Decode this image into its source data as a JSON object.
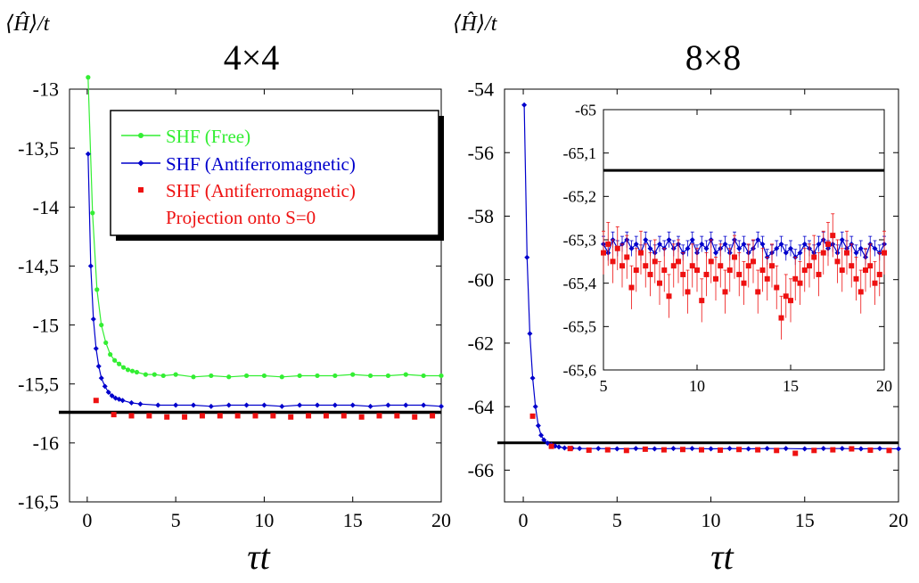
{
  "figure": {
    "ylabel_left": "⟨Ĥ⟩/t",
    "ylabel_right": "⟨Ĥ⟩/t",
    "xlabel_left": "τt",
    "xlabel_right": "τt",
    "title_left": "4×4",
    "title_right": "8×8"
  },
  "colors": {
    "free": "#33ee33",
    "af": "#0000cc",
    "proj": "#ee1111",
    "ref": "#000000"
  },
  "legend": {
    "free": "SHF (Free)",
    "af": "SHF (Antiferromagnetic)",
    "proj_line1": "SHF (Antiferromagnetic)",
    "proj_line2": "Projection onto S=0"
  },
  "chart_data": [
    {
      "type": "line",
      "title": "4×4",
      "xlabel": "τt",
      "ylabel": "⟨Ĥ⟩/t",
      "xlim": [
        -1,
        20
      ],
      "ylim": [
        -16.5,
        -13
      ],
      "xticks": [
        0,
        5,
        10,
        15,
        20
      ],
      "xtick_labels": [
        "0",
        "5",
        "10",
        "15",
        "20"
      ],
      "yticks": [
        -13,
        -13.5,
        -14,
        -14.5,
        -15,
        -15.5,
        -16,
        -16.5
      ],
      "ytick_labels": [
        "-13",
        "-13,5",
        "-14",
        "-14,5",
        "-15",
        "-15,5",
        "-16",
        "-16,5"
      ],
      "legend_position": "top-right",
      "reference_line": -15.74,
      "series": [
        {
          "name": "SHF (Free)",
          "marker": "circle",
          "x": [
            0.05,
            0.3,
            0.55,
            0.8,
            1.05,
            1.3,
            1.55,
            1.8,
            2.05,
            2.3,
            2.55,
            2.8,
            3.3,
            3.8,
            4.3,
            5.0,
            6,
            7,
            8,
            9,
            10,
            11,
            12,
            13,
            14,
            15,
            16,
            17,
            18,
            19,
            20
          ],
          "y": [
            -12.9,
            -14.05,
            -14.7,
            -15.0,
            -15.15,
            -15.25,
            -15.3,
            -15.33,
            -15.36,
            -15.38,
            -15.39,
            -15.4,
            -15.42,
            -15.42,
            -15.43,
            -15.42,
            -15.44,
            -15.43,
            -15.44,
            -15.43,
            -15.43,
            -15.44,
            -15.43,
            -15.43,
            -15.43,
            -15.42,
            -15.43,
            -15.43,
            -15.42,
            -15.43,
            -15.43
          ]
        },
        {
          "name": "SHF (Antiferromagnetic)",
          "marker": "diamond",
          "x": [
            0.05,
            0.2,
            0.35,
            0.5,
            0.65,
            0.8,
            1.0,
            1.2,
            1.4,
            1.6,
            1.8,
            2.0,
            2.5,
            3,
            4,
            5,
            6,
            7,
            8,
            9,
            10,
            11,
            12,
            13,
            14,
            15,
            16,
            17,
            18,
            19,
            20
          ],
          "y": [
            -13.55,
            -14.5,
            -14.95,
            -15.2,
            -15.35,
            -15.45,
            -15.52,
            -15.57,
            -15.6,
            -15.62,
            -15.63,
            -15.64,
            -15.66,
            -15.67,
            -15.68,
            -15.68,
            -15.68,
            -15.69,
            -15.68,
            -15.68,
            -15.68,
            -15.69,
            -15.68,
            -15.68,
            -15.68,
            -15.68,
            -15.69,
            -15.68,
            -15.68,
            -15.68,
            -15.69
          ]
        },
        {
          "name": "SHF (Antiferromagnetic) Projection onto S=0",
          "marker": "square",
          "x": [
            0.5,
            1.5,
            2.5,
            3.5,
            4.5,
            5.5,
            6.5,
            7.5,
            8.5,
            9.5,
            10.5,
            11.5,
            12.5,
            13.5,
            14.5,
            15.5,
            16.5,
            17.5,
            18.5,
            19.5
          ],
          "y": [
            -15.64,
            -15.76,
            -15.77,
            -15.77,
            -15.78,
            -15.78,
            -15.77,
            -15.77,
            -15.77,
            -15.77,
            -15.77,
            -15.78,
            -15.77,
            -15.77,
            -15.77,
            -15.78,
            -15.77,
            -15.77,
            -15.78,
            -15.77
          ]
        }
      ]
    },
    {
      "type": "line",
      "title": "8×8",
      "xlabel": "τt",
      "ylabel": "⟨Ĥ⟩/t",
      "xlim": [
        -1,
        20
      ],
      "ylim": [
        -67,
        -54
      ],
      "xticks": [
        0,
        5,
        10,
        15,
        20
      ],
      "xtick_labels": [
        "0",
        "5",
        "10",
        "15",
        "20"
      ],
      "yticks": [
        -54,
        -56,
        -58,
        -60,
        -62,
        -64,
        -66
      ],
      "ytick_labels": [
        "-54",
        "-56",
        "-58",
        "-60",
        "-62",
        "-64",
        "-66"
      ],
      "reference_line": -65.14,
      "series": [
        {
          "name": "SHF (Antiferromagnetic)",
          "marker": "diamond",
          "x": [
            0.05,
            0.2,
            0.35,
            0.5,
            0.65,
            0.8,
            0.95,
            1.1,
            1.3,
            1.5,
            1.7,
            1.9,
            2.2,
            2.6,
            3,
            4,
            5,
            6,
            7,
            8,
            9,
            10,
            11,
            12,
            13,
            14,
            15,
            16,
            17,
            18,
            19,
            20
          ],
          "y": [
            -54.5,
            -59.3,
            -61.7,
            -63.1,
            -64.0,
            -64.6,
            -64.9,
            -65.05,
            -65.15,
            -65.2,
            -65.24,
            -65.27,
            -65.3,
            -65.31,
            -65.32,
            -65.32,
            -65.33,
            -65.32,
            -65.33,
            -65.32,
            -65.32,
            -65.33,
            -65.32,
            -65.33,
            -65.32,
            -65.32,
            -65.33,
            -65.32,
            -65.32,
            -65.33,
            -65.32,
            -65.33
          ]
        },
        {
          "name": "SHF (Antiferromagnetic) Projection onto S=0",
          "marker": "square",
          "x": [
            0.5,
            1.5,
            2.5,
            3.5,
            4.5,
            5.5,
            6.5,
            7.5,
            8.5,
            9.5,
            10.5,
            11.5,
            12.5,
            13.5,
            14.5,
            15.5,
            16.5,
            17.5,
            18.5,
            19.5
          ],
          "y": [
            -64.3,
            -65.25,
            -65.32,
            -65.37,
            -65.36,
            -65.38,
            -65.34,
            -65.36,
            -65.35,
            -65.36,
            -65.37,
            -65.35,
            -65.36,
            -65.38,
            -65.47,
            -65.38,
            -65.36,
            -65.33,
            -65.37,
            -65.38
          ]
        }
      ]
    },
    {
      "type": "line",
      "title": "",
      "xlim": [
        5,
        20
      ],
      "ylim": [
        -65.6,
        -65
      ],
      "xticks": [
        5,
        10,
        15,
        20
      ],
      "xtick_labels": [
        "5",
        "10",
        "15",
        "20"
      ],
      "yticks": [
        -65,
        -65.1,
        -65.2,
        -65.3,
        -65.4,
        -65.5,
        -65.6
      ],
      "ytick_labels": [
        "-65",
        "-65,1",
        "-65,2",
        "-65,3",
        "-65,4",
        "-65,5",
        "-65,6"
      ],
      "reference_line": -65.14,
      "series": [
        {
          "name": "SHF (Antiferromagnetic)",
          "marker": "diamond",
          "error": 0.018,
          "x": [
            5.0,
            5.25,
            5.5,
            5.75,
            6.0,
            6.25,
            6.5,
            6.75,
            7.0,
            7.25,
            7.5,
            7.75,
            8.0,
            8.25,
            8.5,
            8.75,
            9.0,
            9.25,
            9.5,
            9.75,
            10.0,
            10.25,
            10.5,
            10.75,
            11.0,
            11.25,
            11.5,
            11.75,
            12.0,
            12.25,
            12.5,
            12.75,
            13.0,
            13.25,
            13.5,
            13.75,
            14.0,
            14.25,
            14.5,
            14.75,
            15.0,
            15.25,
            15.5,
            15.75,
            16.0,
            16.25,
            16.5,
            16.75,
            17.0,
            17.25,
            17.5,
            17.75,
            18.0,
            18.25,
            18.5,
            18.75,
            19.0,
            19.25,
            19.5,
            19.75,
            20.0
          ],
          "y": [
            -65.31,
            -65.33,
            -65.3,
            -65.32,
            -65.31,
            -65.3,
            -65.32,
            -65.31,
            -65.33,
            -65.3,
            -65.32,
            -65.33,
            -65.31,
            -65.32,
            -65.3,
            -65.32,
            -65.31,
            -65.33,
            -65.32,
            -65.3,
            -65.33,
            -65.31,
            -65.32,
            -65.3,
            -65.33,
            -65.32,
            -65.31,
            -65.33,
            -65.3,
            -65.32,
            -65.31,
            -65.33,
            -65.32,
            -65.3,
            -65.31,
            -65.34,
            -65.33,
            -65.32,
            -65.31,
            -65.33,
            -65.32,
            -65.34,
            -65.33,
            -65.31,
            -65.32,
            -65.33,
            -65.31,
            -65.3,
            -65.32,
            -65.31,
            -65.33,
            -65.3,
            -65.32,
            -65.31,
            -65.33,
            -65.32,
            -65.34,
            -65.31,
            -65.32,
            -65.33,
            -65.31
          ]
        },
        {
          "name": "SHF (Antiferromagnetic) Projection onto S=0",
          "marker": "square",
          "error": 0.05,
          "x": [
            5.0,
            5.25,
            5.5,
            5.75,
            6.0,
            6.25,
            6.5,
            6.75,
            7.0,
            7.25,
            7.5,
            7.75,
            8.0,
            8.25,
            8.5,
            8.75,
            9.0,
            9.25,
            9.5,
            9.75,
            10.0,
            10.25,
            10.5,
            10.75,
            11.0,
            11.25,
            11.5,
            11.75,
            12.0,
            12.25,
            12.5,
            12.75,
            13.0,
            13.25,
            13.5,
            13.75,
            14.0,
            14.25,
            14.5,
            14.75,
            15.0,
            15.25,
            15.5,
            15.75,
            16.0,
            16.25,
            16.5,
            16.75,
            17.0,
            17.25,
            17.5,
            17.75,
            18.0,
            18.25,
            18.5,
            18.75,
            19.0,
            19.25,
            19.5,
            19.75,
            20.0
          ],
          "y": [
            -65.33,
            -65.31,
            -65.35,
            -65.32,
            -65.36,
            -65.34,
            -65.41,
            -65.37,
            -65.33,
            -65.36,
            -65.38,
            -65.35,
            -65.4,
            -65.37,
            -65.43,
            -65.36,
            -65.35,
            -65.38,
            -65.42,
            -65.36,
            -65.37,
            -65.44,
            -65.38,
            -65.35,
            -65.39,
            -65.36,
            -65.42,
            -65.37,
            -65.34,
            -65.38,
            -65.4,
            -65.36,
            -65.35,
            -65.42,
            -65.37,
            -65.39,
            -65.36,
            -65.41,
            -65.48,
            -65.43,
            -65.44,
            -65.39,
            -65.4,
            -65.37,
            -65.36,
            -65.34,
            -65.38,
            -65.33,
            -65.31,
            -65.29,
            -65.35,
            -65.37,
            -65.33,
            -65.36,
            -65.39,
            -65.42,
            -65.37,
            -65.36,
            -65.4,
            -65.38,
            -65.33
          ]
        }
      ]
    }
  ]
}
